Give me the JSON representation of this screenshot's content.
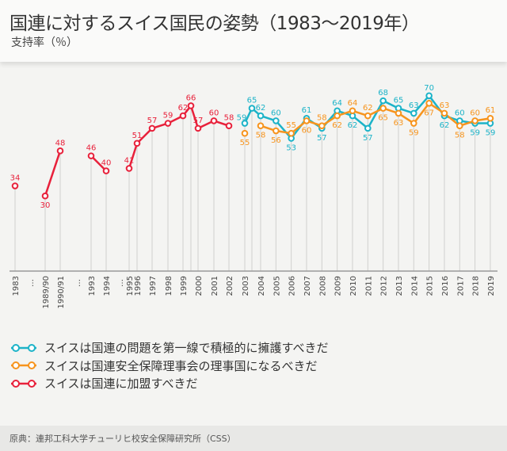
{
  "header": {
    "title": "国連に対するスイス国民の姿勢（1983〜2019年）",
    "subtitle": "支持率（％）"
  },
  "footer": {
    "source": "原典：連邦工科大学チューリヒ校安全保障研究所（CSS）"
  },
  "chart_data": {
    "type": "line",
    "title": "国連に対するスイス国民の姿勢（1983〜2019年）",
    "ylabel": "支持率（％）",
    "ylim": [
      0,
      75
    ],
    "categories": [
      "1983",
      "…",
      "1989/90",
      "1990/91",
      "…",
      "1993",
      "1994",
      "…",
      "1995",
      "1996",
      "1997",
      "1998",
      "1999",
      "",
      "2000",
      "2001",
      "2002",
      "2003",
      "",
      "2004",
      "2005",
      "2006",
      "2007",
      "2008",
      "2009",
      "2010",
      "2011",
      "2012",
      "2013",
      "2014",
      "2015",
      "2016",
      "2017",
      "2018",
      "2019"
    ],
    "series": [
      {
        "name": "スイスは国連の問題を第一線で積極的に擁護すべきだ",
        "color": "#1cb3c8",
        "values": [
          null,
          null,
          null,
          null,
          null,
          null,
          null,
          null,
          null,
          null,
          null,
          null,
          null,
          null,
          null,
          null,
          null,
          59,
          65,
          62,
          60,
          53,
          61,
          57,
          64,
          62,
          57,
          68,
          65,
          63,
          70,
          62,
          60,
          59,
          59
        ]
      },
      {
        "name": "スイスは国連安全保障理事会の理事国になるべきだ",
        "color": "#f7941d",
        "values": [
          null,
          null,
          null,
          null,
          null,
          null,
          null,
          null,
          null,
          null,
          null,
          null,
          null,
          null,
          null,
          null,
          null,
          55,
          null,
          58,
          56,
          55,
          60,
          58,
          62,
          64,
          62,
          65,
          63,
          59,
          67,
          63,
          58,
          60,
          61
        ]
      },
      {
        "name": "スイスは国連に加盟すべきだ",
        "color": "#e8213b",
        "values": [
          34,
          null,
          30,
          48,
          null,
          46,
          40,
          null,
          41,
          51,
          57,
          59,
          62,
          66,
          57,
          60,
          58,
          null,
          null,
          null,
          null,
          null,
          null,
          null,
          null,
          null,
          null,
          null,
          null,
          null,
          null,
          null,
          null,
          null,
          null
        ]
      }
    ],
    "legend": "bottom-left"
  }
}
